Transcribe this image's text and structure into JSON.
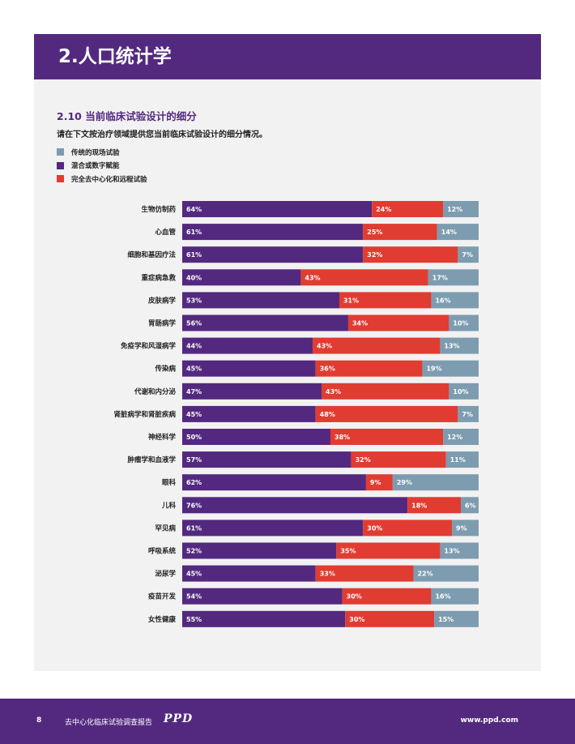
{
  "header": {
    "title": "2.人口统计学"
  },
  "section": {
    "title": "2.10 当前临床试验设计的细分",
    "description": "请在下文按治疗领域提供您当前临床试验设计的细分情况。"
  },
  "legend": [
    {
      "label": "传统的现场试验",
      "color": "#7d9cb0"
    },
    {
      "label": "混合或数字赋能",
      "color": "#53297f"
    },
    {
      "label": "完全去中心化和远程试验",
      "color": "#e03c31"
    }
  ],
  "chart_data": {
    "type": "bar",
    "stacked": true,
    "orientation": "horizontal",
    "unit": "%",
    "categories": [
      "生物仿制药",
      "心血管",
      "细胞和基因疗法",
      "重症病急救",
      "皮肤病学",
      "胃肠病学",
      "免疫学和风湿病学",
      "传染病",
      "代谢和内分泌",
      "肾脏病学和肾脏疾病",
      "神经科学",
      "肿瘤学和血液学",
      "眼科",
      "儿科",
      "罕见病",
      "呼吸系统",
      "泌尿学",
      "疫苗开发",
      "女性健康"
    ],
    "series": [
      {
        "name": "混合或数字赋能",
        "color": "#53297f",
        "values": [
          64,
          61,
          61,
          40,
          53,
          56,
          44,
          45,
          47,
          45,
          50,
          57,
          62,
          76,
          61,
          52,
          45,
          54,
          55
        ]
      },
      {
        "name": "完全去中心化和远程试验",
        "color": "#e03c31",
        "values": [
          24,
          25,
          32,
          43,
          31,
          34,
          43,
          36,
          43,
          48,
          38,
          32,
          9,
          18,
          30,
          35,
          33,
          30,
          30
        ]
      },
      {
        "name": "传统的现场试验",
        "color": "#7d9cb0",
        "values": [
          12,
          14,
          7,
          17,
          16,
          10,
          13,
          19,
          10,
          7,
          12,
          11,
          29,
          6,
          9,
          13,
          22,
          16,
          15
        ]
      }
    ],
    "xlim": [
      0,
      100
    ]
  },
  "footer": {
    "page": "8",
    "report": "去中心化临床试验调查报告",
    "logo": "PPD",
    "url": "www.ppd.com"
  }
}
